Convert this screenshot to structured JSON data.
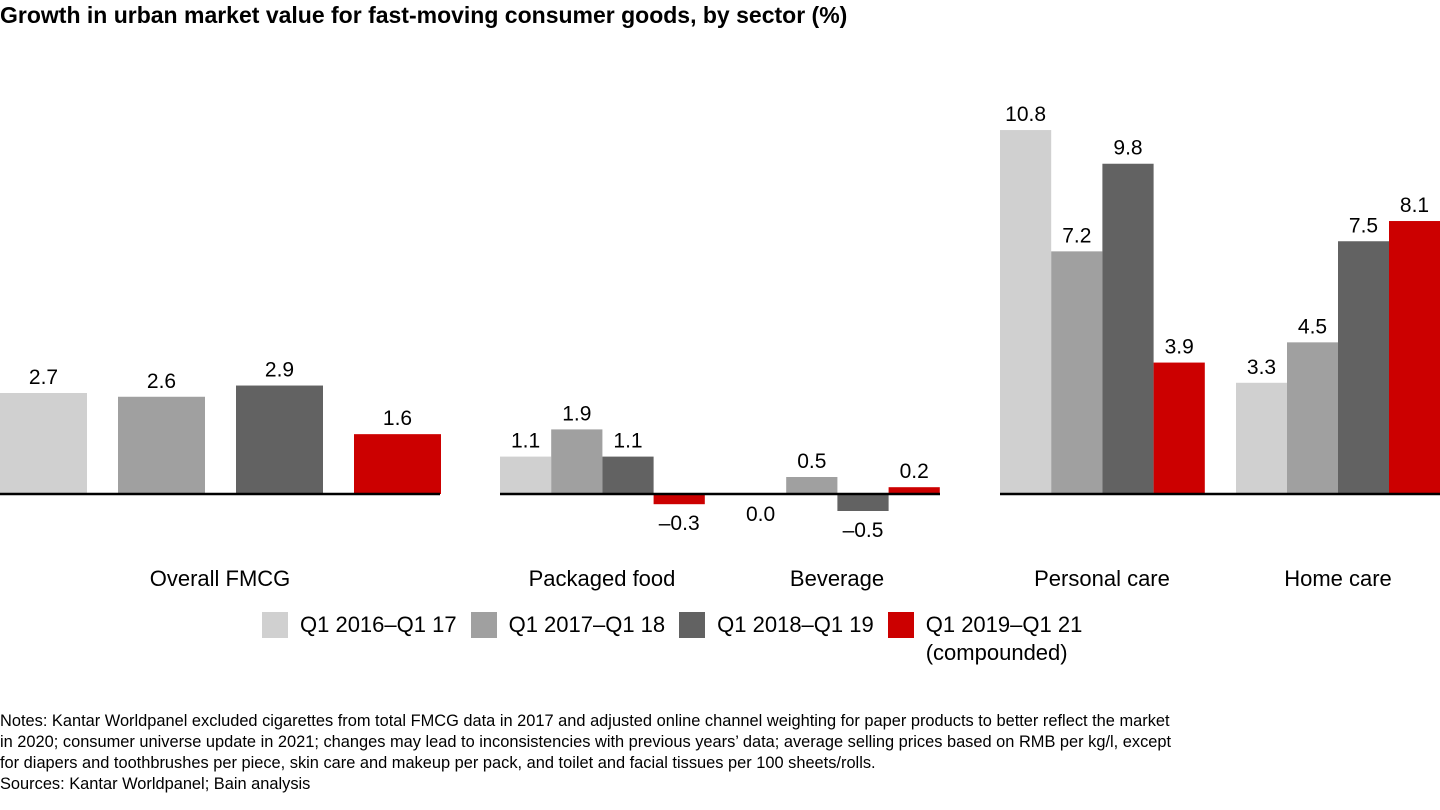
{
  "title": "Growth in urban market value for fast-moving consumer goods, by sector (%)",
  "chart_data": {
    "type": "bar",
    "title": "Growth in urban market value for fast-moving consumer goods, by sector (%)",
    "xlabel": "",
    "ylabel": "",
    "grid": false,
    "categories": [
      "Overall FMCG",
      "Packaged food",
      "Beverage",
      "Personal care",
      "Home care"
    ],
    "series": [
      {
        "name": "Q1 2016–Q1 17",
        "color": "#d0d0d0",
        "values": [
          2.7,
          1.1,
          0.0,
          10.8,
          3.3
        ],
        "labels": [
          "2.7",
          "1.1",
          "0.0",
          "10.8",
          "3.3"
        ]
      },
      {
        "name": "Q1 2017–Q1 18",
        "color": "#a0a0a0",
        "values": [
          2.6,
          1.9,
          0.5,
          7.2,
          4.5
        ],
        "labels": [
          "2.6",
          "1.9",
          "0.5",
          "7.2",
          "4.5"
        ]
      },
      {
        "name": "Q1 2018–Q1 19",
        "color": "#626262",
        "values": [
          2.9,
          1.1,
          -0.5,
          9.8,
          7.5
        ],
        "labels": [
          "2.9",
          "1.1",
          "–0.5",
          "9.8",
          "7.5"
        ]
      },
      {
        "name": "Q1 2019–Q1 21\n(compounded)",
        "color": "#cc0000",
        "values": [
          1.6,
          -0.3,
          0.2,
          3.9,
          8.1
        ],
        "labels": [
          "1.6",
          "–0.3",
          "0.2",
          "3.9",
          "8.1"
        ]
      }
    ],
    "panels": [
      {
        "categories": [
          "Overall FMCG"
        ],
        "ylim": [
          0,
          2.9
        ]
      },
      {
        "categories": [
          "Packaged food",
          "Beverage"
        ],
        "ylim": [
          -0.5,
          1.9
        ]
      },
      {
        "categories": [
          "Personal care",
          "Home care"
        ],
        "ylim": [
          0,
          10.8
        ]
      }
    ],
    "legend_position": "bottom"
  },
  "legend": [
    {
      "label": "Q1 2016–Q1 17",
      "color": "#d0d0d0"
    },
    {
      "label": "Q1 2017–Q1 18",
      "color": "#a0a0a0"
    },
    {
      "label": "Q1 2018–Q1 19",
      "color": "#626262"
    },
    {
      "label": "Q1 2019–Q1 21\n(compounded)",
      "color": "#cc0000"
    }
  ],
  "notes": {
    "lines": [
      "Notes: Kantar Worldpanel excluded cigarettes from total FMCG data in 2017 and adjusted online channel weighting for paper products to better reflect the market",
      "in 2020; consumer universe update in 2021; changes may lead to inconsistencies with previous years’ data; average selling prices based on RMB per kg/l, except",
      "for diapers and toothbrushes per piece, skin care and makeup per pack, and toilet and facial tissues per 100 sheets/rolls.",
      "Sources: Kantar Worldpanel; Bain analysis"
    ]
  }
}
